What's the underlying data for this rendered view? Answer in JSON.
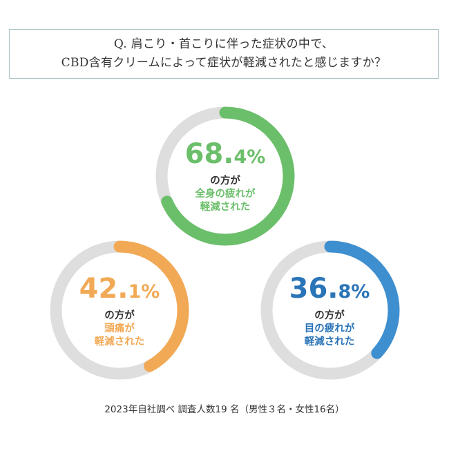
{
  "question": {
    "line1": "Q. 肩こり・首こりに伴った症状の中で、",
    "line2": "CBD含有クリームによって症状が軽減されたと感じますか？"
  },
  "chart_data": {
    "type": "donut",
    "track_color": "#dedede",
    "items": [
      {
        "value": 68.4,
        "percent_int": "68.",
        "percent_dec": "4",
        "percent_sign": "%",
        "text_line1": "の方が",
        "text_line2": "全身の疲れが",
        "text_line3": "軽減された",
        "color": "#6bbf6a"
      },
      {
        "value": 42.1,
        "percent_int": "42.",
        "percent_dec": "1",
        "percent_sign": "%",
        "text_line1": "の方が",
        "text_line2": "頭痛が",
        "text_line3": "軽減された",
        "color": "#f2a955"
      },
      {
        "value": 36.8,
        "percent_int": "36.",
        "percent_dec": "8",
        "percent_sign": "%",
        "text_line1": "の方が",
        "text_line2": "目の疲れが",
        "text_line3": "軽減された",
        "color": "#3e8fd0",
        "text_color": "#2a74b8"
      }
    ]
  },
  "footnote": "2023年自社調べ 調査人数19 名（男性３名・女性16名）"
}
